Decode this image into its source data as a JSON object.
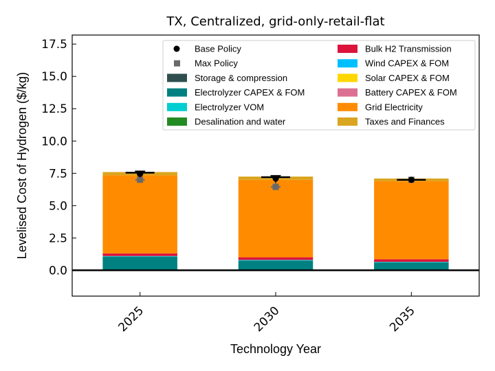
{
  "chart_data": {
    "type": "bar",
    "stacked": true,
    "title": "TX, Centralized, grid-only-retail-flat",
    "xlabel": "Technology Year",
    "ylabel": "Levelised Cost of Hydrogen ($/kg)",
    "ylim": [
      -2,
      18.2
    ],
    "yticks": [
      0.0,
      2.5,
      5.0,
      7.5,
      10.0,
      12.5,
      15.0,
      17.5
    ],
    "ytick_labels": [
      "0.0",
      "2.5",
      "5.0",
      "7.5",
      "10.0",
      "12.5",
      "15.0",
      "17.5"
    ],
    "categories": [
      "2025",
      "2030",
      "2035"
    ],
    "series": [
      {
        "name": "Storage & compression",
        "color": "#2f4f4f",
        "values": [
          0.05,
          0.05,
          0.05
        ]
      },
      {
        "name": "Electrolyzer CAPEX & FOM",
        "color": "#008080",
        "values": [
          1.0,
          0.7,
          0.55
        ]
      },
      {
        "name": "Electrolyzer VOM",
        "color": "#00ced1",
        "values": [
          0.05,
          0.05,
          0.05
        ]
      },
      {
        "name": "Desalination and water",
        "color": "#228b22",
        "values": [
          0.0,
          0.0,
          0.0
        ]
      },
      {
        "name": "Bulk H2 Transmission",
        "color": "#dc143c",
        "values": [
          0.2,
          0.2,
          0.2
        ]
      },
      {
        "name": "Wind CAPEX & FOM",
        "color": "#00bfff",
        "values": [
          0.0,
          0.0,
          0.0
        ]
      },
      {
        "name": "Solar CAPEX & FOM",
        "color": "#ffd700",
        "values": [
          0.0,
          0.0,
          0.0
        ]
      },
      {
        "name": "Battery CAPEX & FOM",
        "color": "#db7093",
        "values": [
          0.0,
          0.0,
          0.0
        ]
      },
      {
        "name": "Grid Electricity",
        "color": "#ff8c00",
        "values": [
          6.05,
          6.0,
          6.05
        ]
      },
      {
        "name": "Taxes and Finances",
        "color": "#daa520",
        "values": [
          0.25,
          0.25,
          0.2
        ]
      }
    ],
    "total_marker": [
      7.55,
      7.2,
      7.0
    ],
    "base_policy": [
      7.45,
      7.1,
      7.0
    ],
    "max_policy": [
      7.0,
      6.45,
      7.0
    ],
    "error_low": [
      7.0,
      6.45,
      7.0
    ],
    "error_high": [
      7.55,
      7.2,
      7.0
    ],
    "legend": {
      "placement": "top-right",
      "columns": [
        [
          {
            "label": "Base Policy",
            "kind": "circle",
            "color": "#000000"
          },
          {
            "label": "Max Policy",
            "kind": "square",
            "color": "#696969"
          },
          {
            "label": "Storage & compression",
            "kind": "patch",
            "color": "#2f4f4f"
          },
          {
            "label": "Electrolyzer CAPEX & FOM",
            "kind": "patch",
            "color": "#008080"
          },
          {
            "label": "Electrolyzer VOM",
            "kind": "patch",
            "color": "#00ced1"
          },
          {
            "label": "Desalination and water",
            "kind": "patch",
            "color": "#228b22"
          }
        ],
        [
          {
            "label": "Bulk H2 Transmission",
            "kind": "patch",
            "color": "#dc143c"
          },
          {
            "label": "Wind CAPEX & FOM",
            "kind": "patch",
            "color": "#00bfff"
          },
          {
            "label": "Solar CAPEX & FOM",
            "kind": "patch",
            "color": "#ffd700"
          },
          {
            "label": "Battery CAPEX & FOM",
            "kind": "patch",
            "color": "#db7093"
          },
          {
            "label": "Grid Electricity",
            "kind": "patch",
            "color": "#ff8c00"
          },
          {
            "label": "Taxes and Finances",
            "kind": "patch",
            "color": "#daa520"
          }
        ]
      ]
    }
  }
}
